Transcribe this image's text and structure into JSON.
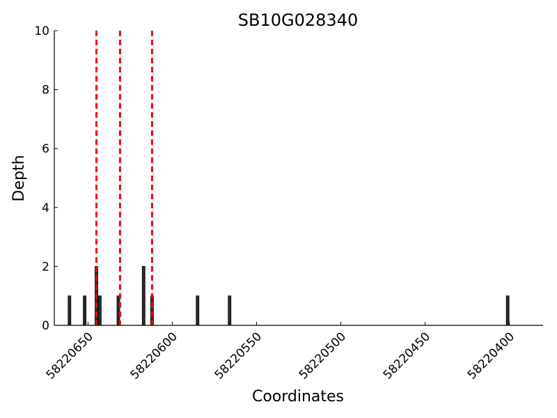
{
  "chart_data": {
    "type": "bar",
    "title": "SB10G028340",
    "xlabel": "Coordinates",
    "ylabel": "Depth",
    "xlim": [
      58220670,
      58220380
    ],
    "x_reversed": true,
    "ylim": [
      0,
      10
    ],
    "xticks": [
      58220650,
      58220600,
      58220550,
      58220500,
      58220450,
      58220400
    ],
    "yticks": [
      0,
      2,
      4,
      6,
      8,
      10
    ],
    "grid": false,
    "bars": [
      {
        "x": 58220661,
        "depth": 1
      },
      {
        "x": 58220652,
        "depth": 1
      },
      {
        "x": 58220645,
        "depth": 2
      },
      {
        "x": 58220643,
        "depth": 1
      },
      {
        "x": 58220632,
        "depth": 1
      },
      {
        "x": 58220617,
        "depth": 2
      },
      {
        "x": 58220612,
        "depth": 1
      },
      {
        "x": 58220585,
        "depth": 1
      },
      {
        "x": 58220566,
        "depth": 1
      },
      {
        "x": 58220401,
        "depth": 1
      }
    ],
    "bar_color": "#2b2b2b",
    "marker_lines": [
      {
        "x": 58220645,
        "color": "#ff0000",
        "style": "dashed"
      },
      {
        "x": 58220631,
        "color": "#ff0000",
        "style": "dashed"
      },
      {
        "x": 58220612,
        "color": "#ff0000",
        "style": "dashed"
      }
    ]
  }
}
